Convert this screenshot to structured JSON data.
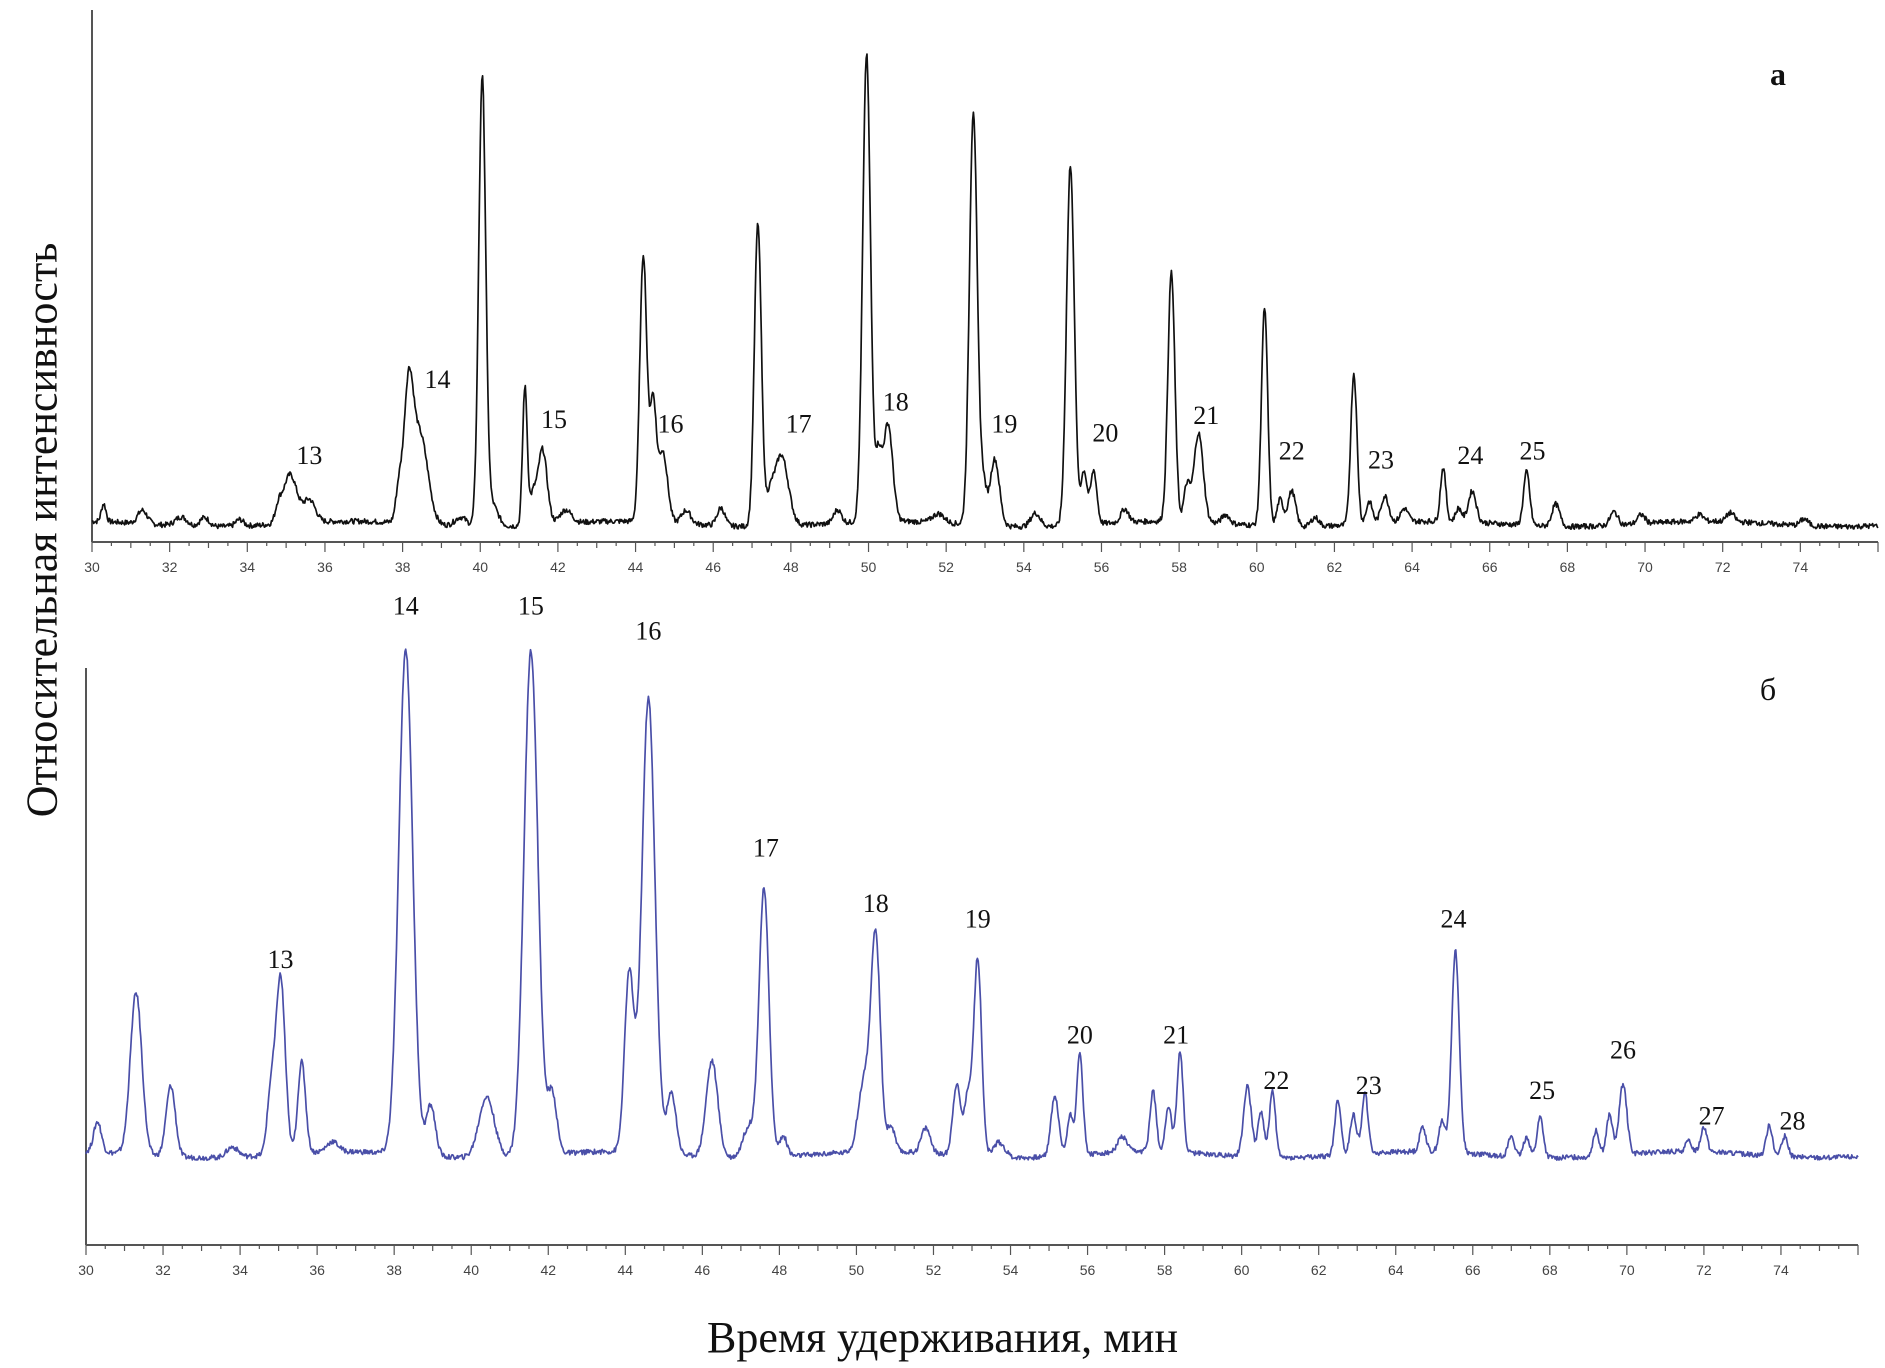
{
  "figure": {
    "ylabel": "Относительная интенсивность",
    "xlabel": "Время удерживания, мин"
  },
  "chart_data": [
    {
      "type": "line",
      "panel_label": "а",
      "color": "#111111",
      "xlim": [
        30,
        76
      ],
      "xticks": [
        "30",
        "32",
        "34",
        "36",
        "38",
        "40",
        "42",
        "44",
        "46",
        "48",
        "50",
        "52",
        "54",
        "56",
        "58",
        "60",
        "62",
        "64",
        "66",
        "68",
        "70",
        "72",
        "74"
      ],
      "ylim": [
        0,
        100
      ],
      "baseline": 2.5,
      "noise": 0.6,
      "peaks": [
        {
          "x": 30.3,
          "h": 4,
          "w": 0.06
        },
        {
          "x": 31.3,
          "h": 3,
          "w": 0.12
        },
        {
          "x": 32.3,
          "h": 2,
          "w": 0.15
        },
        {
          "x": 32.9,
          "h": 2,
          "w": 0.12
        },
        {
          "x": 33.8,
          "h": 1.5,
          "w": 0.1
        },
        {
          "x": 34.8,
          "h": 3,
          "w": 0.08
        },
        {
          "x": 35.1,
          "h": 11,
          "w": 0.18
        },
        {
          "x": 35.6,
          "h": 5,
          "w": 0.15
        },
        {
          "x": 37.9,
          "h": 7,
          "w": 0.08
        },
        {
          "x": 38.15,
          "h": 28,
          "w": 0.12
        },
        {
          "x": 38.45,
          "h": 20,
          "w": 0.2
        },
        {
          "x": 39.5,
          "h": 2,
          "w": 0.15
        },
        {
          "x": 40.05,
          "h": 100,
          "w": 0.09
        },
        {
          "x": 40.3,
          "h": 5,
          "w": 0.15
        },
        {
          "x": 41.15,
          "h": 31,
          "w": 0.06
        },
        {
          "x": 41.35,
          "h": 6,
          "w": 0.08
        },
        {
          "x": 41.6,
          "h": 17,
          "w": 0.12
        },
        {
          "x": 42.2,
          "h": 3,
          "w": 0.15
        },
        {
          "x": 44.2,
          "h": 60,
          "w": 0.09
        },
        {
          "x": 44.45,
          "h": 26,
          "w": 0.08
        },
        {
          "x": 44.7,
          "h": 16,
          "w": 0.12
        },
        {
          "x": 45.3,
          "h": 3,
          "w": 0.12
        },
        {
          "x": 46.2,
          "h": 4,
          "w": 0.1
        },
        {
          "x": 47.15,
          "h": 68,
          "w": 0.09
        },
        {
          "x": 47.45,
          "h": 5,
          "w": 0.1
        },
        {
          "x": 47.75,
          "h": 16,
          "w": 0.18
        },
        {
          "x": 49.2,
          "h": 3,
          "w": 0.1
        },
        {
          "x": 49.95,
          "h": 105,
          "w": 0.1
        },
        {
          "x": 50.25,
          "h": 14,
          "w": 0.08
        },
        {
          "x": 50.5,
          "h": 22,
          "w": 0.12
        },
        {
          "x": 51.8,
          "h": 2,
          "w": 0.15
        },
        {
          "x": 52.7,
          "h": 93,
          "w": 0.1
        },
        {
          "x": 52.95,
          "h": 9,
          "w": 0.08
        },
        {
          "x": 53.25,
          "h": 15,
          "w": 0.12
        },
        {
          "x": 54.3,
          "h": 3,
          "w": 0.12
        },
        {
          "x": 55.2,
          "h": 81,
          "w": 0.1
        },
        {
          "x": 55.55,
          "h": 12,
          "w": 0.08
        },
        {
          "x": 55.8,
          "h": 12,
          "w": 0.08
        },
        {
          "x": 56.6,
          "h": 3,
          "w": 0.1
        },
        {
          "x": 57.8,
          "h": 56,
          "w": 0.09
        },
        {
          "x": 58.2,
          "h": 8,
          "w": 0.08
        },
        {
          "x": 58.5,
          "h": 20,
          "w": 0.12
        },
        {
          "x": 59.2,
          "h": 2,
          "w": 0.1
        },
        {
          "x": 60.2,
          "h": 49,
          "w": 0.08
        },
        {
          "x": 60.6,
          "h": 6,
          "w": 0.08
        },
        {
          "x": 60.9,
          "h": 8,
          "w": 0.1
        },
        {
          "x": 61.5,
          "h": 2,
          "w": 0.1
        },
        {
          "x": 62.5,
          "h": 34,
          "w": 0.08
        },
        {
          "x": 62.9,
          "h": 5,
          "w": 0.08
        },
        {
          "x": 63.3,
          "h": 6,
          "w": 0.1
        },
        {
          "x": 63.8,
          "h": 3,
          "w": 0.1
        },
        {
          "x": 64.8,
          "h": 12,
          "w": 0.07
        },
        {
          "x": 65.2,
          "h": 3,
          "w": 0.08
        },
        {
          "x": 65.55,
          "h": 7,
          "w": 0.1
        },
        {
          "x": 66.95,
          "h": 12,
          "w": 0.08
        },
        {
          "x": 67.7,
          "h": 5,
          "w": 0.1
        },
        {
          "x": 69.2,
          "h": 3,
          "w": 0.1
        },
        {
          "x": 69.9,
          "h": 2,
          "w": 0.1
        },
        {
          "x": 71.4,
          "h": 1.5,
          "w": 0.1
        },
        {
          "x": 72.2,
          "h": 2,
          "w": 0.1
        },
        {
          "x": 74.1,
          "h": 1.5,
          "w": 0.1
        }
      ],
      "annotations": [
        {
          "text": "13",
          "x": 35.6,
          "y": 16
        },
        {
          "text": "14",
          "x": 38.9,
          "y": 33
        },
        {
          "text": "15",
          "x": 41.9,
          "y": 24
        },
        {
          "text": "16",
          "x": 44.9,
          "y": 23
        },
        {
          "text": "17",
          "x": 48.2,
          "y": 23
        },
        {
          "text": "18",
          "x": 50.7,
          "y": 28
        },
        {
          "text": "19",
          "x": 53.5,
          "y": 23
        },
        {
          "text": "20",
          "x": 56.1,
          "y": 21
        },
        {
          "text": "21",
          "x": 58.7,
          "y": 25
        },
        {
          "text": "22",
          "x": 60.9,
          "y": 17
        },
        {
          "text": "23",
          "x": 63.2,
          "y": 15
        },
        {
          "text": "24",
          "x": 65.5,
          "y": 16
        },
        {
          "text": "25",
          "x": 67.1,
          "y": 17
        }
      ]
    },
    {
      "type": "line",
      "panel_label": "б",
      "color": "#4a4fa8",
      "xlim": [
        30,
        76
      ],
      "xticks": [
        "30",
        "32",
        "34",
        "36",
        "38",
        "40",
        "42",
        "44",
        "46",
        "48",
        "50",
        "52",
        "54",
        "56",
        "58",
        "60",
        "62",
        "64",
        "66",
        "68",
        "70",
        "72",
        "74"
      ],
      "ylim": [
        0,
        100
      ],
      "baseline": 8,
      "noise": 0.5,
      "peaks": [
        {
          "x": 30.3,
          "h": 6,
          "w": 0.1
        },
        {
          "x": 31.3,
          "h": 32,
          "w": 0.15
        },
        {
          "x": 32.2,
          "h": 14,
          "w": 0.12
        },
        {
          "x": 33.8,
          "h": 2,
          "w": 0.15
        },
        {
          "x": 34.8,
          "h": 12,
          "w": 0.1
        },
        {
          "x": 35.05,
          "h": 35,
          "w": 0.12
        },
        {
          "x": 35.6,
          "h": 18,
          "w": 0.1
        },
        {
          "x": 36.4,
          "h": 2,
          "w": 0.15
        },
        {
          "x": 38.3,
          "h": 100,
          "w": 0.18
        },
        {
          "x": 38.95,
          "h": 10,
          "w": 0.12
        },
        {
          "x": 40.4,
          "h": 12,
          "w": 0.2
        },
        {
          "x": 41.55,
          "h": 100,
          "w": 0.18
        },
        {
          "x": 42.1,
          "h": 12,
          "w": 0.12
        },
        {
          "x": 44.1,
          "h": 35,
          "w": 0.12
        },
        {
          "x": 44.6,
          "h": 90,
          "w": 0.17
        },
        {
          "x": 45.2,
          "h": 12,
          "w": 0.12
        },
        {
          "x": 46.25,
          "h": 19,
          "w": 0.15
        },
        {
          "x": 47.2,
          "h": 6,
          "w": 0.15
        },
        {
          "x": 47.6,
          "h": 53,
          "w": 0.13
        },
        {
          "x": 48.1,
          "h": 4,
          "w": 0.1
        },
        {
          "x": 50.2,
          "h": 14,
          "w": 0.15
        },
        {
          "x": 50.5,
          "h": 42,
          "w": 0.12
        },
        {
          "x": 50.9,
          "h": 5,
          "w": 0.1
        },
        {
          "x": 51.8,
          "h": 5,
          "w": 0.12
        },
        {
          "x": 52.6,
          "h": 14,
          "w": 0.1
        },
        {
          "x": 52.9,
          "h": 12,
          "w": 0.1
        },
        {
          "x": 53.15,
          "h": 39,
          "w": 0.1
        },
        {
          "x": 53.7,
          "h": 3,
          "w": 0.15
        },
        {
          "x": 55.15,
          "h": 12,
          "w": 0.1
        },
        {
          "x": 55.55,
          "h": 8,
          "w": 0.08
        },
        {
          "x": 55.8,
          "h": 20,
          "w": 0.08
        },
        {
          "x": 56.9,
          "h": 3,
          "w": 0.12
        },
        {
          "x": 57.7,
          "h": 12,
          "w": 0.08
        },
        {
          "x": 58.1,
          "h": 9,
          "w": 0.08
        },
        {
          "x": 58.4,
          "h": 20,
          "w": 0.08
        },
        {
          "x": 60.15,
          "h": 14,
          "w": 0.1
        },
        {
          "x": 60.5,
          "h": 9,
          "w": 0.08
        },
        {
          "x": 60.8,
          "h": 13,
          "w": 0.08
        },
        {
          "x": 62.5,
          "h": 11,
          "w": 0.08
        },
        {
          "x": 62.9,
          "h": 8,
          "w": 0.08
        },
        {
          "x": 63.2,
          "h": 12,
          "w": 0.08
        },
        {
          "x": 64.7,
          "h": 5,
          "w": 0.08
        },
        {
          "x": 65.2,
          "h": 6,
          "w": 0.08
        },
        {
          "x": 65.55,
          "h": 40,
          "w": 0.1
        },
        {
          "x": 67.0,
          "h": 4,
          "w": 0.08
        },
        {
          "x": 67.4,
          "h": 4,
          "w": 0.08
        },
        {
          "x": 67.75,
          "h": 8,
          "w": 0.08
        },
        {
          "x": 69.2,
          "h": 5,
          "w": 0.08
        },
        {
          "x": 69.55,
          "h": 8,
          "w": 0.08
        },
        {
          "x": 69.9,
          "h": 14,
          "w": 0.1
        },
        {
          "x": 71.6,
          "h": 2,
          "w": 0.08
        },
        {
          "x": 72.0,
          "h": 5,
          "w": 0.08
        },
        {
          "x": 73.7,
          "h": 6,
          "w": 0.08
        },
        {
          "x": 74.1,
          "h": 4,
          "w": 0.08
        }
      ],
      "annotations": [
        {
          "text": "13",
          "x": 35.05,
          "y": 45
        },
        {
          "text": "14",
          "x": 38.3,
          "y": 115
        },
        {
          "text": "15",
          "x": 41.55,
          "y": 115
        },
        {
          "text": "16",
          "x": 44.6,
          "y": 110
        },
        {
          "text": "17",
          "x": 47.65,
          "y": 67
        },
        {
          "text": "18",
          "x": 50.5,
          "y": 56
        },
        {
          "text": "19",
          "x": 53.15,
          "y": 53
        },
        {
          "text": "20",
          "x": 55.8,
          "y": 30
        },
        {
          "text": "21",
          "x": 58.3,
          "y": 30
        },
        {
          "text": "22",
          "x": 60.9,
          "y": 21
        },
        {
          "text": "23",
          "x": 63.3,
          "y": 20
        },
        {
          "text": "24",
          "x": 65.5,
          "y": 53
        },
        {
          "text": "25",
          "x": 67.8,
          "y": 19
        },
        {
          "text": "26",
          "x": 69.9,
          "y": 27
        },
        {
          "text": "27",
          "x": 72.2,
          "y": 14
        },
        {
          "text": "28",
          "x": 74.3,
          "y": 13
        }
      ]
    }
  ]
}
